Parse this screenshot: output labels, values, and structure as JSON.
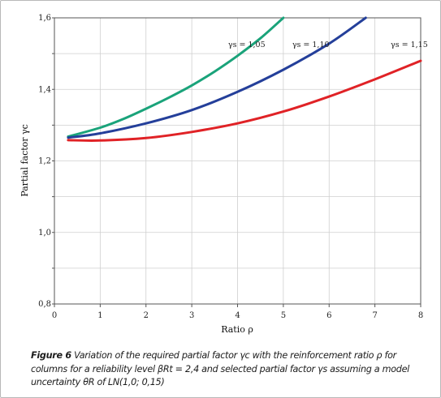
{
  "chart_data": {
    "type": "line",
    "xlabel": "Ratio ρ",
    "ylabel": "Partial factor γc",
    "xlim": [
      0,
      8
    ],
    "ylim": [
      0.8,
      1.6
    ],
    "x_ticks": [
      "0",
      "1",
      "2",
      "3",
      "4",
      "5",
      "6",
      "7",
      "8"
    ],
    "y_ticks": [
      "0,8",
      "1,0",
      "1,2",
      "1,4",
      "1,6"
    ],
    "grid": true,
    "series": [
      {
        "name": "γs = 1,05",
        "color": "#1aa37a",
        "x": [
          0.3,
          1,
          1.5,
          2,
          2.5,
          3,
          3.5,
          4,
          4.5,
          5
        ],
        "y": [
          1.268,
          1.293,
          1.317,
          1.346,
          1.377,
          1.411,
          1.45,
          1.494,
          1.543,
          1.6
        ]
      },
      {
        "name": "γs = 1,10",
        "color": "#243f9a",
        "x": [
          0.3,
          1,
          2,
          3,
          4,
          5,
          6,
          6.8
        ],
        "y": [
          1.265,
          1.277,
          1.305,
          1.342,
          1.393,
          1.455,
          1.528,
          1.6
        ]
      },
      {
        "name": "γs = 1,15",
        "color": "#e02226",
        "x": [
          0.3,
          1,
          2,
          3,
          4,
          5,
          6,
          7,
          8
        ],
        "y": [
          1.258,
          1.257,
          1.264,
          1.281,
          1.305,
          1.338,
          1.38,
          1.428,
          1.48
        ]
      }
    ]
  },
  "caption": {
    "label": "Figure 6",
    "text": "Variation of the required partial factor γc with the reinforcement ratio ρ for columns for a reliability level βRt = 2,4 and selected partial factor γs assuming a model uncertainty θR of LN(1,0; 0,15)"
  }
}
